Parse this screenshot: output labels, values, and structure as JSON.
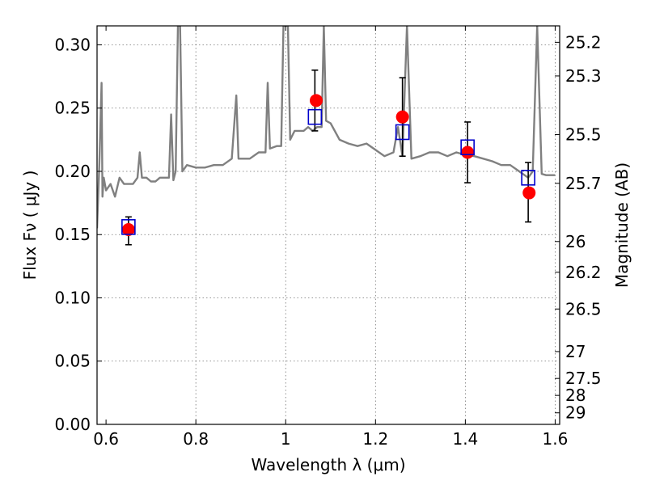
{
  "chart_data": {
    "type": "scatter",
    "title": "",
    "xlabel": "Wavelength  λ (μm)",
    "ylabel": "Flux  Fν  ( μJy )",
    "y2label": "Magnitude (AB)",
    "xlim": [
      0.58,
      1.61
    ],
    "ylim": [
      0.0,
      0.315
    ],
    "x_ticks": [
      0.6,
      0.8,
      1.0,
      1.2,
      1.4,
      1.6
    ],
    "x_tick_labels": [
      "0.6",
      "0.8",
      "1",
      "1.2",
      "1.4",
      "1.6"
    ],
    "y_ticks": [
      0.0,
      0.05,
      0.1,
      0.15,
      0.2,
      0.25,
      0.3
    ],
    "y_tick_labels": [
      "0.00",
      "0.05",
      "0.10",
      "0.15",
      "0.20",
      "0.25",
      "0.30"
    ],
    "y2_ticks": [
      25.2,
      25.3,
      25.5,
      25.7,
      26,
      26.2,
      26.5,
      27,
      27.5,
      28,
      29
    ],
    "y2_tick_labels": [
      "25.2",
      "25.3",
      "25.5",
      "25.7",
      "26",
      "26.2",
      "26.5",
      "27",
      "27.5",
      "28",
      "29"
    ],
    "grid": true,
    "series": [
      {
        "kind": "line",
        "color": "#808080",
        "x": [
          0.58,
          0.585,
          0.59,
          0.592,
          0.595,
          0.6,
          0.61,
          0.62,
          0.63,
          0.64,
          0.65,
          0.66,
          0.67,
          0.675,
          0.68,
          0.69,
          0.7,
          0.71,
          0.72,
          0.73,
          0.74,
          0.745,
          0.75,
          0.755,
          0.76,
          0.765,
          0.77,
          0.78,
          0.8,
          0.82,
          0.84,
          0.86,
          0.88,
          0.89,
          0.895,
          0.9,
          0.92,
          0.94,
          0.955,
          0.96,
          0.965,
          0.98,
          0.99,
          0.995,
          1.0,
          1.005,
          1.01,
          1.02,
          1.04,
          1.05,
          1.06,
          1.07,
          1.08,
          1.085,
          1.09,
          1.1,
          1.12,
          1.14,
          1.16,
          1.18,
          1.2,
          1.22,
          1.24,
          1.25,
          1.26,
          1.27,
          1.28,
          1.3,
          1.32,
          1.34,
          1.36,
          1.38,
          1.4,
          1.42,
          1.44,
          1.46,
          1.48,
          1.5,
          1.52,
          1.54,
          1.55,
          1.56,
          1.57,
          1.58,
          1.6
        ],
        "y": [
          0.155,
          0.205,
          0.27,
          0.18,
          0.195,
          0.185,
          0.19,
          0.18,
          0.195,
          0.19,
          0.19,
          0.19,
          0.195,
          0.215,
          0.195,
          0.195,
          0.192,
          0.192,
          0.195,
          0.195,
          0.195,
          0.245,
          0.193,
          0.2,
          0.315,
          0.315,
          0.2,
          0.205,
          0.203,
          0.203,
          0.205,
          0.205,
          0.21,
          0.26,
          0.21,
          0.21,
          0.21,
          0.215,
          0.215,
          0.27,
          0.218,
          0.22,
          0.22,
          0.315,
          0.315,
          0.315,
          0.225,
          0.232,
          0.232,
          0.235,
          0.232,
          0.235,
          0.235,
          0.315,
          0.24,
          0.238,
          0.225,
          0.222,
          0.22,
          0.222,
          0.217,
          0.212,
          0.215,
          0.235,
          0.212,
          0.315,
          0.21,
          0.212,
          0.215,
          0.215,
          0.212,
          0.215,
          0.213,
          0.212,
          0.21,
          0.208,
          0.205,
          0.205,
          0.2,
          0.195,
          0.2,
          0.315,
          0.198,
          0.197,
          0.197
        ]
      },
      {
        "kind": "markers",
        "marker": "square",
        "color": "#0000cc",
        "x": [
          0.65,
          1.065,
          1.26,
          1.405,
          1.54
        ],
        "y": [
          0.156,
          0.243,
          0.231,
          0.219,
          0.195
        ],
        "yerr_low": [
          0.142,
          0.232,
          0.212,
          0.191,
          0.16
        ],
        "yerr_high": [
          0.164,
          0.28,
          0.274,
          0.239,
          0.207
        ]
      },
      {
        "kind": "markers",
        "marker": "circle",
        "color": "#ff0000",
        "x": [
          0.65,
          1.068,
          1.26,
          1.405,
          1.542
        ],
        "y": [
          0.154,
          0.256,
          0.243,
          0.215,
          0.183
        ]
      }
    ]
  }
}
